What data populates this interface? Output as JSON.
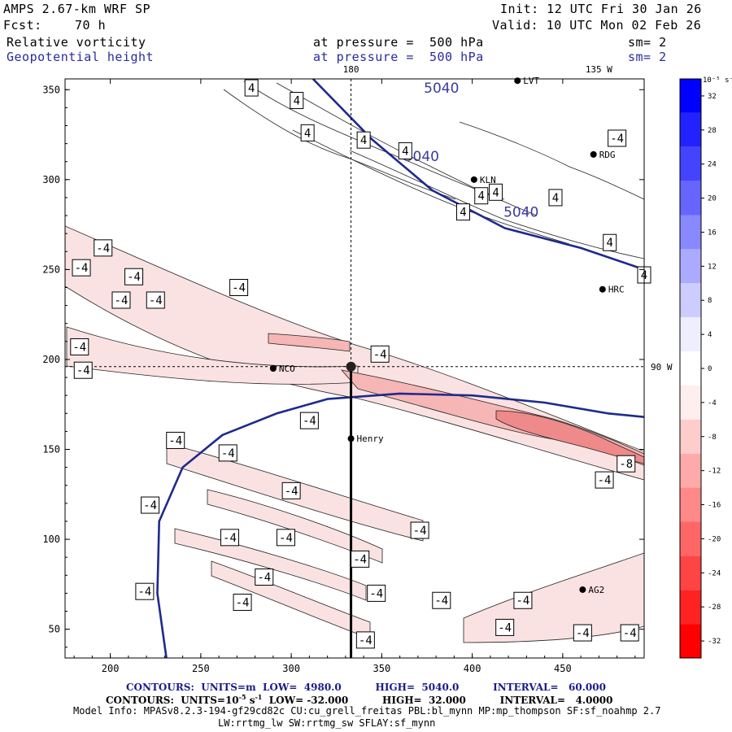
{
  "header": {
    "model": "AMPS 2.67-km WRF SP",
    "init": "Init: 12 UTC Fri 30 Jan 26",
    "fcst_label": "Fcst:",
    "fcst_hours": "70 h",
    "valid": "Valid: 10 UTC Mon 02 Feb 26",
    "field1_name": "Relative vorticity",
    "field1_level": "at pressure =  500 hPa",
    "field1_sm": "sm= 2",
    "field2_name": "Geopotential height",
    "field2_level": "at pressure =  500 hPa",
    "field2_sm": "sm= 2"
  },
  "colors": {
    "height_contour": "#1e2a8c",
    "vort_neg_light": "#fbe2e2",
    "vort_neg_mid": "#f6b6b6",
    "vort_neg_dark": "#ee8a8a"
  },
  "chart_data": {
    "type": "contour-map",
    "xlim": [
      175,
      495
    ],
    "ylim": [
      34,
      356
    ],
    "x_ticks": [
      200,
      250,
      300,
      350,
      400,
      450
    ],
    "y_ticks": [
      50,
      100,
      150,
      200,
      250,
      300,
      350
    ],
    "top_labels": [
      {
        "x": 333,
        "text": "180"
      },
      {
        "x": 470,
        "text": "135 W"
      }
    ],
    "right_labels": [
      {
        "y": 196,
        "text": "90 W"
      }
    ],
    "crosshair": {
      "x": 333,
      "y": 196
    },
    "section_line": {
      "x": 333,
      "y_from": 196,
      "y_to": 34
    },
    "stations": [
      {
        "name": "LVT",
        "x": 425,
        "y": 355
      },
      {
        "name": "RDG",
        "x": 467,
        "y": 314
      },
      {
        "name": "KLN",
        "x": 401,
        "y": 300
      },
      {
        "name": "HRC",
        "x": 472,
        "y": 239
      },
      {
        "name": "NCO",
        "x": 290,
        "y": 195
      },
      {
        "name": "Henry",
        "x": 333,
        "y": 156
      },
      {
        "name": "AG2",
        "x": 461,
        "y": 72
      }
    ],
    "height_contours": {
      "units": "m",
      "low": "4980.0",
      "high": "5040.0",
      "interval": "60.000",
      "lines": [
        {
          "value": "5040",
          "points": [
            [
              312,
              356
            ],
            [
              345,
              322
            ],
            [
              378,
              294
            ],
            [
              418,
              273
            ],
            [
              460,
              262
            ],
            [
              495,
              250
            ]
          ],
          "labels": [
            [
              383,
              351
            ],
            [
              372,
              313
            ],
            [
              427,
              282
            ]
          ]
        },
        {
          "value": "4980",
          "points": [
            [
              231,
              34
            ],
            [
              226,
              70
            ],
            [
              227,
              110
            ],
            [
              240,
              140
            ],
            [
              262,
              158
            ],
            [
              292,
              170
            ],
            [
              320,
              178
            ],
            [
              360,
              181
            ],
            [
              400,
              180
            ],
            [
              440,
              176
            ],
            [
              475,
              170
            ],
            [
              495,
              168
            ]
          ],
          "labels": []
        }
      ]
    },
    "vorticity": {
      "units": "10^-5 s^-1",
      "low": "-32.000",
      "high": "32.000",
      "interval": "4.0000",
      "colorbar": {
        "min": -34,
        "max": 34,
        "ticks": [
          "32",
          "28",
          "24",
          "20",
          "16",
          "12",
          "8",
          "4",
          "0",
          "-4",
          "-8",
          "-12",
          "-16",
          "-20",
          "-24",
          "-28",
          "-32"
        ],
        "units_label": "10⁻⁵ s⁻¹"
      },
      "labels": [
        {
          "text": "4",
          "x": 278,
          "y": 351
        },
        {
          "text": "4",
          "x": 303,
          "y": 344
        },
        {
          "text": "4",
          "x": 309,
          "y": 326
        },
        {
          "text": "4",
          "x": 340,
          "y": 322
        },
        {
          "text": "4",
          "x": 363,
          "y": 316
        },
        {
          "text": "4",
          "x": 413,
          "y": 293
        },
        {
          "text": "4",
          "x": 405,
          "y": 291
        },
        {
          "text": "4",
          "x": 446,
          "y": 290
        },
        {
          "text": "4",
          "x": 395,
          "y": 282
        },
        {
          "text": "4",
          "x": 476,
          "y": 265
        },
        {
          "text": "4",
          "x": 495,
          "y": 247
        },
        {
          "text": "-4",
          "x": 480,
          "y": 323
        },
        {
          "text": "-4",
          "x": 196,
          "y": 262
        },
        {
          "text": "-4",
          "x": 184,
          "y": 251
        },
        {
          "text": "-4",
          "x": 213,
          "y": 246
        },
        {
          "text": "-4",
          "x": 206,
          "y": 233
        },
        {
          "text": "-4",
          "x": 225,
          "y": 233
        },
        {
          "text": "-4",
          "x": 271,
          "y": 240
        },
        {
          "text": "-4",
          "x": 183,
          "y": 207
        },
        {
          "text": "-4",
          "x": 185,
          "y": 194
        },
        {
          "text": "-4",
          "x": 349,
          "y": 203
        },
        {
          "text": "-4",
          "x": 310,
          "y": 166
        },
        {
          "text": "-4",
          "x": 236,
          "y": 155
        },
        {
          "text": "-4",
          "x": 265,
          "y": 148
        },
        {
          "text": "-4",
          "x": 222,
          "y": 119
        },
        {
          "text": "-4",
          "x": 300,
          "y": 127
        },
        {
          "text": "-4",
          "x": 297,
          "y": 101
        },
        {
          "text": "-4",
          "x": 266,
          "y": 101
        },
        {
          "text": "-4",
          "x": 371,
          "y": 105
        },
        {
          "text": "-4",
          "x": 338,
          "y": 89
        },
        {
          "text": "-4",
          "x": 285,
          "y": 79
        },
        {
          "text": "-4",
          "x": 219,
          "y": 71
        },
        {
          "text": "-4",
          "x": 273,
          "y": 65
        },
        {
          "text": "-4",
          "x": 347,
          "y": 70
        },
        {
          "text": "-4",
          "x": 383,
          "y": 66
        },
        {
          "text": "-4",
          "x": 428,
          "y": 66
        },
        {
          "text": "-4",
          "x": 418,
          "y": 51
        },
        {
          "text": "-4",
          "x": 341,
          "y": 44
        },
        {
          "text": "-4",
          "x": 461,
          "y": 48
        },
        {
          "text": "-4",
          "x": 487,
          "y": 48
        },
        {
          "text": "-4",
          "x": 473,
          "y": 133
        },
        {
          "text": "-8",
          "x": 485,
          "y": 142
        }
      ]
    }
  },
  "footer": {
    "line1": "CONTOURS:  UNITS=m  LOW=  4980.0          HIGH=  5040.0          INTERVAL=   60.000",
    "line2_a": "CONTOURS:  UNITS=10",
    "line2_exp": "-5",
    "line2_b": " s",
    "line2_exp2": "-1",
    "line2_c": "  LOW= -32.000          HIGH=  32.000          INTERVAL=   4.0000",
    "line3": "Model Info: MPASv8.2.3-194-gf29cd82c CU:cu_grell_freitas PBL:bl_mynn MP:mp_thompson SF:sf_noahmp 2.7",
    "line4": "LW:rrtmg_lw SW:rrtmg_sw SFLAY:sf_mynn"
  }
}
